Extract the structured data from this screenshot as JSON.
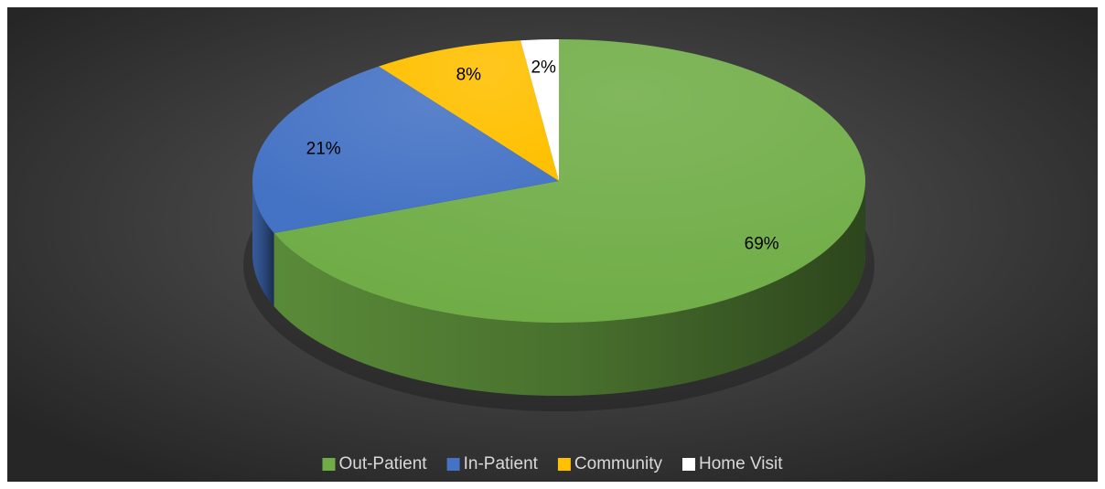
{
  "chart_data": {
    "type": "pie",
    "categories": [
      "Out-Patient",
      "In-Patient",
      "Community",
      "Home Visit"
    ],
    "values": [
      69,
      21,
      8,
      2
    ],
    "value_labels": [
      "69%",
      "21%",
      "8%",
      "2%"
    ],
    "colors": [
      "#70ad47",
      "#4472c4",
      "#ffc000",
      "#ffffff"
    ],
    "legend": "bottom"
  }
}
